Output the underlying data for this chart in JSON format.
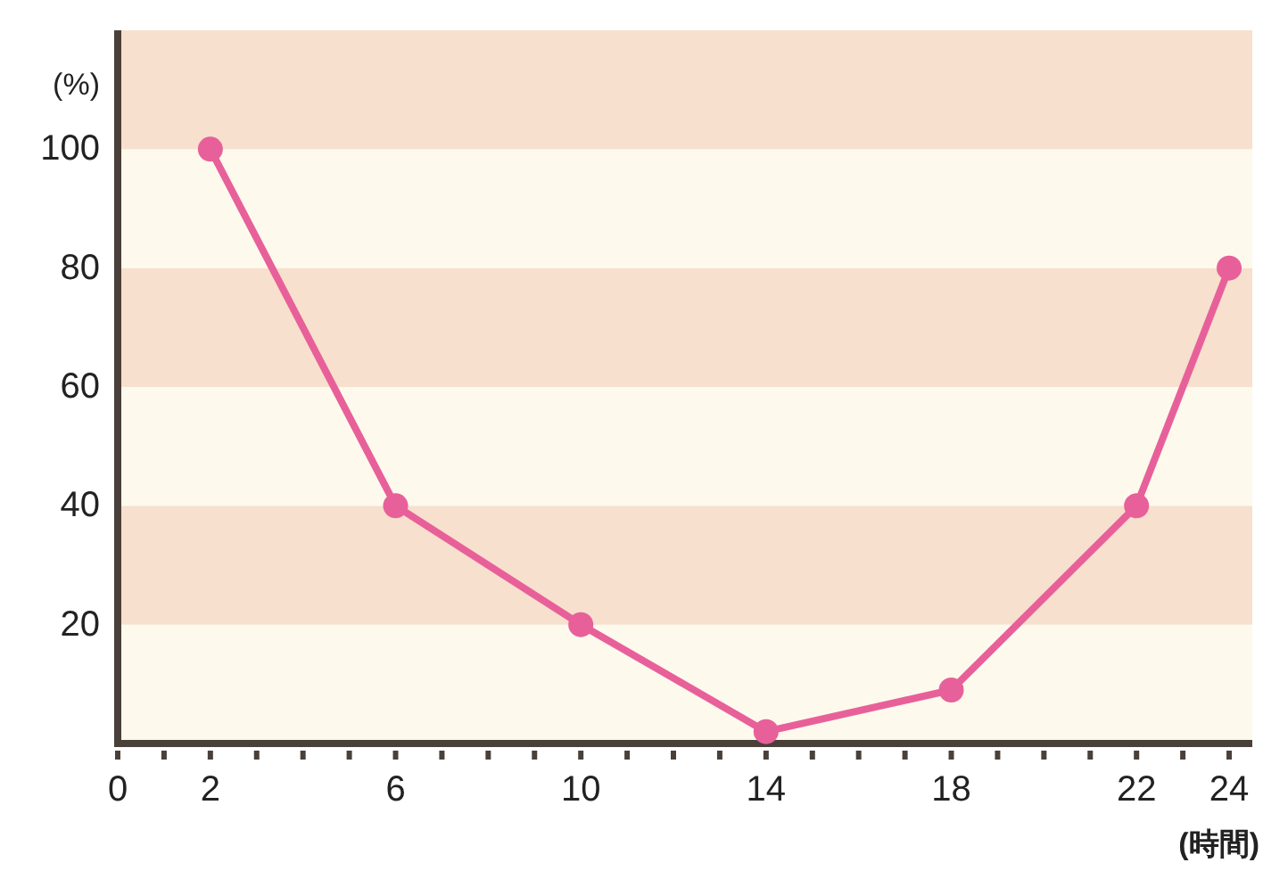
{
  "chart_data": {
    "type": "line",
    "xlabel": "(時間)",
    "ylabel": "(%)",
    "x": [
      2,
      6,
      10,
      14,
      18,
      22,
      24
    ],
    "series": [
      {
        "color": "#e8609a",
        "values": [
          100,
          40,
          20,
          2,
          9,
          40,
          80
        ]
      }
    ],
    "marker": "circle",
    "line_style": "solid",
    "grid": false,
    "xlim": [
      0,
      24.5
    ],
    "ylim": [
      0,
      120
    ],
    "xticks": [
      0,
      {
        "value": 1,
        "label": null
      },
      2,
      {
        "value": 3,
        "label": null
      },
      {
        "value": 4,
        "label": null
      },
      {
        "value": 5,
        "label": null
      },
      6,
      {
        "value": 7,
        "label": null
      },
      {
        "value": 8,
        "label": null
      },
      {
        "value": 9,
        "label": null
      },
      10,
      {
        "value": 11,
        "label": null
      },
      {
        "value": 12,
        "label": null
      },
      {
        "value": 13,
        "label": null
      },
      14,
      {
        "value": 15,
        "label": null
      },
      {
        "value": 16,
        "label": null
      },
      {
        "value": 17,
        "label": null
      },
      18,
      {
        "value": 19,
        "label": null
      },
      {
        "value": 20,
        "label": null
      },
      {
        "value": 21,
        "label": null
      },
      22,
      {
        "value": 23,
        "label": null
      },
      24
    ],
    "yticks": [
      20,
      40,
      60,
      80,
      100
    ],
    "bands": [
      {
        "axis": "y",
        "from": 0,
        "to": 20,
        "color": "#fdf9ec"
      },
      {
        "axis": "y",
        "from": 20,
        "to": 40,
        "color": "#f7e0cd"
      },
      {
        "axis": "y",
        "from": 40,
        "to": 60,
        "color": "#fdf9ec"
      },
      {
        "axis": "y",
        "from": 60,
        "to": 80,
        "color": "#f7e0cd"
      },
      {
        "axis": "y",
        "from": 80,
        "to": 100,
        "color": "#fdf9ec"
      },
      {
        "axis": "y",
        "from": 100,
        "to": 120,
        "color": "#f7e0cd"
      }
    ]
  }
}
